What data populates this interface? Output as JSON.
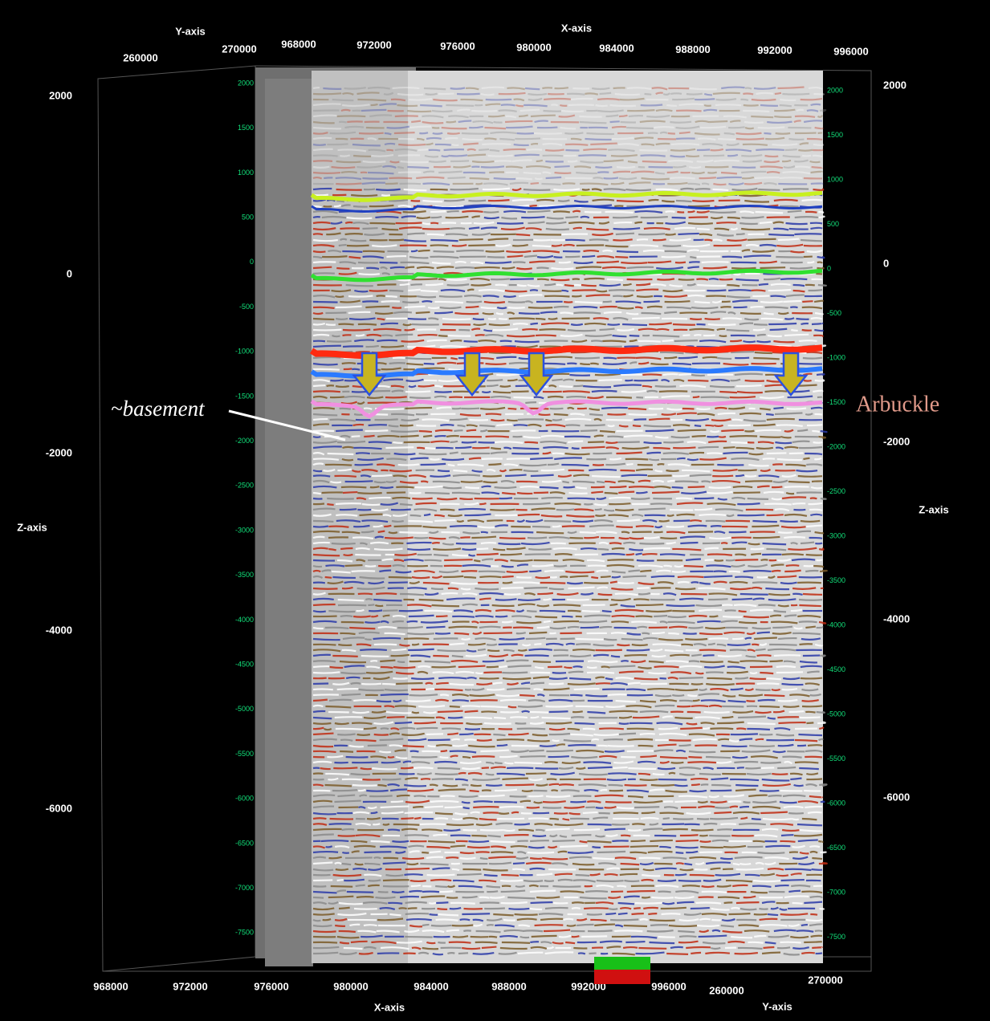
{
  "axes": {
    "y_axis_top": {
      "title": "Y-axis",
      "ticks": [
        "260000",
        "270000"
      ]
    },
    "x_axis_top": {
      "title": "X-axis",
      "ticks": [
        "968000",
        "972000",
        "976000",
        "980000",
        "984000",
        "988000",
        "992000",
        "996000"
      ]
    },
    "z_axis_left": {
      "title": "Z-axis",
      "ticks": [
        "2000",
        "0",
        "-2000",
        "-4000",
        "-6000"
      ]
    },
    "z_axis_right": {
      "title": "Z-axis",
      "ticks": [
        "2000",
        "0",
        "-2000",
        "-4000",
        "-6000"
      ]
    },
    "x_axis_bottom": {
      "title": "X-axis",
      "ticks": [
        "968000",
        "972000",
        "976000",
        "980000",
        "984000",
        "988000",
        "992000",
        "996000"
      ]
    },
    "y_axis_bottom": {
      "title": "Y-axis",
      "ticks": [
        "260000",
        "270000"
      ]
    },
    "inner_z_ticks": [
      "2000",
      "1500",
      "1000",
      "500",
      "0",
      "-500",
      "-1000",
      "-1500",
      "-2000",
      "-2500",
      "-3000",
      "-3500",
      "-4000",
      "-4500",
      "-5000",
      "-5500",
      "-6000",
      "-6500",
      "-7000",
      "-7500"
    ]
  },
  "annotations": {
    "basement": "~basement",
    "arbuckle": "Arbuckle"
  }
}
